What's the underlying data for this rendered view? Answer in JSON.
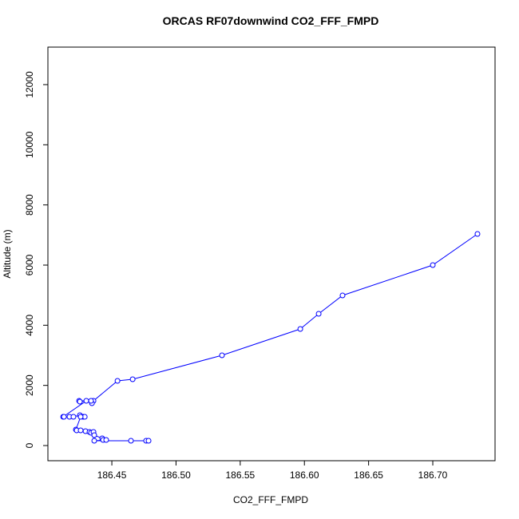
{
  "chart_data": {
    "type": "line",
    "title": "ORCAS RF07downwind CO2_FFF_FMPD",
    "x_label": "CO2_FFF_FMPD",
    "y_label": "Altitude (m)",
    "color": "#0000ff",
    "markers": true,
    "xlim": [
      186.4002,
      186.7485
    ],
    "ylim": [
      -504,
      13247
    ],
    "xticks": [
      186.45,
      {
        "value": 186.5,
        "label": "186.50"
      },
      186.55,
      {
        "value": 186.6,
        "label": "186.60"
      },
      186.65,
      {
        "value": 186.7,
        "label": "186.70"
      }
    ],
    "yticks": [
      0,
      2000,
      4000,
      6000,
      8000,
      10000,
      12000
    ],
    "x": [
      186.7348,
      186.7,
      186.6297,
      186.6111,
      186.5968,
      186.5358,
      186.4662,
      186.4544,
      186.4357,
      186.4345,
      186.4338,
      186.4245,
      186.4251,
      186.4301,
      186.4121,
      186.4127,
      186.417,
      186.4201,
      186.4251,
      186.4276,
      186.4289,
      186.4257,
      186.422,
      186.4226,
      186.4257,
      186.4295,
      186.4326,
      186.4338,
      186.4357,
      186.4363,
      186.4425,
      186.4432,
      186.4456,
      186.4363,
      186.4649,
      186.4767,
      186.4786
    ],
    "values": [
      7035,
      5999,
      4991,
      4380,
      3876,
      3000,
      2203,
      2150,
      1487,
      1407,
      1487,
      1487,
      1460,
      1487,
      956,
      956,
      956,
      956,
      1009,
      956,
      956,
      956,
      531,
      504,
      504,
      478,
      451,
      425,
      451,
      345,
      239,
      186,
      186,
      159,
      159,
      159,
      159
    ]
  }
}
